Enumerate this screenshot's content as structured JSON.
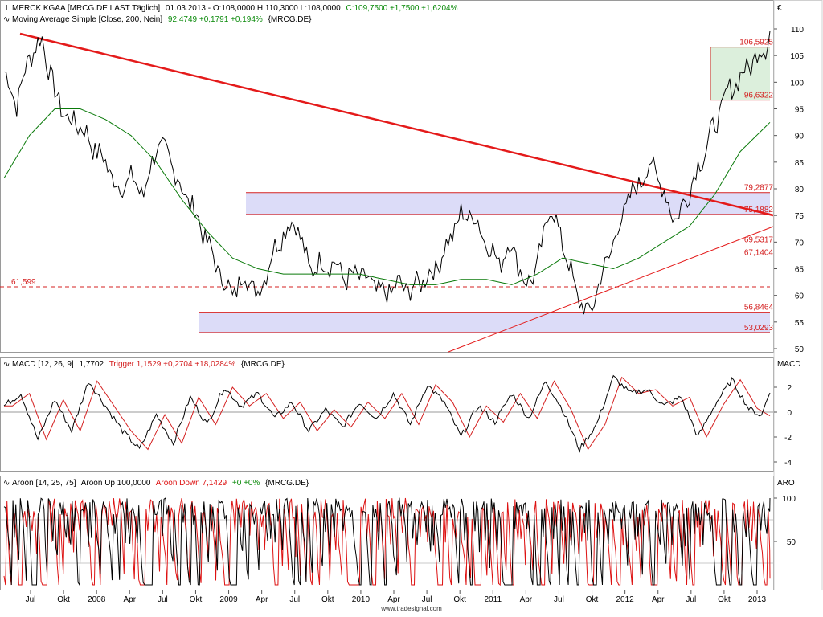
{
  "header": {
    "symbol": "MERCK KGAA [MRCG.DE LAST Täglich]",
    "bar_values": "01.03.2013 - O:108,0000 H:110,3000 L:108,0000",
    "close": "C:109,7500 +1,7500 +1,6204%",
    "ma_label": "Moving Average Simple [Close, 200, Nein]",
    "ma_value": "92,4749 +0,1791 +0,194%",
    "ma_symbol": "{MRCG.DE}",
    "currency": "€"
  },
  "macd_header": {
    "label": "MACD [12, 26, 9]",
    "value": "1,7702",
    "trigger": "Trigger 1,1529 +0,2704 +18,0284%",
    "symbol": "{MRCG.DE}",
    "axis_title": "MACD"
  },
  "aroon_header": {
    "label": "Aroon [14, 25, 75]",
    "up": "Aroon Up 100,0000",
    "down": "Aroon Down 7,1429",
    "chg": "+0 +0%",
    "symbol": "{MRCG.DE}",
    "axis_title": "ARO"
  },
  "footer": "www.tradesignal.com",
  "colors": {
    "price": "#000000",
    "ma": "#0a7a0a",
    "trend": "#e41a1a",
    "levels": "#d42020",
    "zone_fill": "#dcdcf8",
    "zone_green": "#dcefdc",
    "trigger": "#d42020",
    "aroon_down": "#dd1111",
    "green_text": "#0a8a0a"
  },
  "chart_data": [
    {
      "type": "line",
      "title": "MERCK KGAA",
      "x_labels": [
        "Jul",
        "Okt",
        "2008",
        "Apr",
        "Jul",
        "Okt",
        "2009",
        "Apr",
        "Jul",
        "Okt",
        "2010",
        "Apr",
        "Jul",
        "Okt",
        "2011",
        "Apr",
        "Jul",
        "Okt",
        "2012",
        "Apr",
        "Jul",
        "Okt",
        "2013"
      ],
      "y_ticks": [
        50,
        55,
        60,
        65,
        70,
        75,
        80,
        85,
        90,
        95,
        100,
        105,
        110
      ],
      "ylim": [
        49,
        112
      ],
      "price_anchors": [
        [
          0,
          102
        ],
        [
          3,
          96
        ],
        [
          6,
          105
        ],
        [
          9,
          108
        ],
        [
          12,
          98
        ],
        [
          15,
          93
        ],
        [
          18,
          92
        ],
        [
          21,
          88
        ],
        [
          24,
          85
        ],
        [
          27,
          80
        ],
        [
          30,
          82
        ],
        [
          33,
          79
        ],
        [
          36,
          88
        ],
        [
          39,
          86
        ],
        [
          42,
          80
        ],
        [
          45,
          76
        ],
        [
          48,
          70
        ],
        [
          51,
          64
        ],
        [
          54,
          60
        ],
        [
          57,
          64
        ],
        [
          60,
          60
        ],
        [
          63,
          67
        ],
        [
          66,
          72
        ],
        [
          69,
          74
        ],
        [
          72,
          65
        ],
        [
          75,
          66
        ],
        [
          78,
          66
        ],
        [
          81,
          63
        ],
        [
          84,
          64
        ],
        [
          87,
          62
        ],
        [
          90,
          60
        ],
        [
          93,
          62
        ],
        [
          96,
          61
        ],
        [
          99,
          63
        ],
        [
          102,
          65
        ],
        [
          105,
          70
        ],
        [
          108,
          75
        ],
        [
          111,
          75
        ],
        [
          114,
          70
        ],
        [
          117,
          66
        ],
        [
          120,
          70
        ],
        [
          123,
          62
        ],
        [
          126,
          65
        ],
        [
          129,
          77
        ],
        [
          132,
          70
        ],
        [
          135,
          61
        ],
        [
          138,
          56
        ],
        [
          141,
          63
        ],
        [
          144,
          70
        ],
        [
          147,
          77
        ],
        [
          150,
          81
        ],
        [
          153,
          85
        ],
        [
          156,
          79
        ],
        [
          159,
          74
        ],
        [
          162,
          80
        ],
        [
          165,
          86
        ],
        [
          168,
          92
        ],
        [
          171,
          98
        ],
        [
          174,
          101
        ],
        [
          177,
          104
        ],
        [
          180,
          107
        ],
        [
          181,
          109.75
        ]
      ],
      "ma_anchors": [
        [
          0,
          82
        ],
        [
          6,
          90
        ],
        [
          12,
          95
        ],
        [
          18,
          95
        ],
        [
          24,
          93
        ],
        [
          30,
          90
        ],
        [
          36,
          85
        ],
        [
          42,
          78
        ],
        [
          48,
          72
        ],
        [
          54,
          67
        ],
        [
          60,
          65
        ],
        [
          66,
          64
        ],
        [
          72,
          64
        ],
        [
          78,
          64
        ],
        [
          84,
          64
        ],
        [
          90,
          63
        ],
        [
          96,
          62
        ],
        [
          102,
          62
        ],
        [
          108,
          63
        ],
        [
          114,
          63
        ],
        [
          120,
          62
        ],
        [
          126,
          64
        ],
        [
          132,
          67
        ],
        [
          138,
          66
        ],
        [
          144,
          65
        ],
        [
          150,
          67
        ],
        [
          156,
          70
        ],
        [
          162,
          73
        ],
        [
          168,
          79
        ],
        [
          174,
          87
        ],
        [
          181,
          92.47
        ]
      ],
      "levels": [
        {
          "label": "106,5925",
          "value": 106.5925,
          "style": "solid"
        },
        {
          "label": "96,6322",
          "value": 96.6322,
          "style": "solid"
        },
        {
          "label": "79,2877",
          "value": 79.2877,
          "style": "solid"
        },
        {
          "label": "75,1882",
          "value": 75.1882,
          "style": "solid"
        },
        {
          "label": "69,5317",
          "value": 69.5317,
          "style": "text"
        },
        {
          "label": "67,1404",
          "value": 67.1404,
          "style": "text"
        },
        {
          "label": "56,8464",
          "value": 56.8464,
          "style": "solid"
        },
        {
          "label": "53,0293",
          "value": 53.0293,
          "style": "solid"
        },
        {
          "label": "61,599",
          "value": 61.599,
          "style": "dashed"
        }
      ]
    },
    {
      "type": "line",
      "title": "MACD [12, 26, 9]",
      "y_ticks": [
        -4,
        -2,
        0,
        2
      ],
      "ylim": [
        -4.4,
        3.6
      ],
      "macd_anchors": [
        [
          0,
          0.5
        ],
        [
          4,
          1.5
        ],
        [
          8,
          -2.2
        ],
        [
          12,
          1.0
        ],
        [
          16,
          -1.5
        ],
        [
          20,
          2.5
        ],
        [
          24,
          0.5
        ],
        [
          28,
          -1.5
        ],
        [
          32,
          -3.0
        ],
        [
          36,
          -0.2
        ],
        [
          40,
          -2.5
        ],
        [
          44,
          1.2
        ],
        [
          48,
          -1.0
        ],
        [
          52,
          2.0
        ],
        [
          56,
          0.5
        ],
        [
          60,
          1.5
        ],
        [
          64,
          -0.5
        ],
        [
          68,
          0.8
        ],
        [
          72,
          -1.5
        ],
        [
          76,
          0.2
        ],
        [
          80,
          -1.2
        ],
        [
          84,
          0.8
        ],
        [
          88,
          -0.5
        ],
        [
          92,
          1.5
        ],
        [
          96,
          -1.0
        ],
        [
          100,
          2.2
        ],
        [
          104,
          0.8
        ],
        [
          108,
          -2.0
        ],
        [
          112,
          0.5
        ],
        [
          116,
          -0.8
        ],
        [
          120,
          1.5
        ],
        [
          124,
          -0.5
        ],
        [
          128,
          2.5
        ],
        [
          132,
          0.2
        ],
        [
          136,
          -3.0
        ],
        [
          140,
          -1.0
        ],
        [
          144,
          2.8
        ],
        [
          148,
          1.5
        ],
        [
          152,
          1.8
        ],
        [
          156,
          0.5
        ],
        [
          160,
          1.2
        ],
        [
          164,
          -2.0
        ],
        [
          168,
          0.6
        ],
        [
          172,
          2.6
        ],
        [
          176,
          0.3
        ],
        [
          179,
          -0.3
        ],
        [
          181,
          1.77
        ]
      ],
      "trigger_lag": 2
    },
    {
      "type": "line",
      "title": "Aroon [14, 25, 75]",
      "y_ticks": [
        50,
        100
      ],
      "ylim": [
        0,
        108
      ],
      "aroon_up_last": 100,
      "aroon_down_last": 7.1429
    }
  ]
}
